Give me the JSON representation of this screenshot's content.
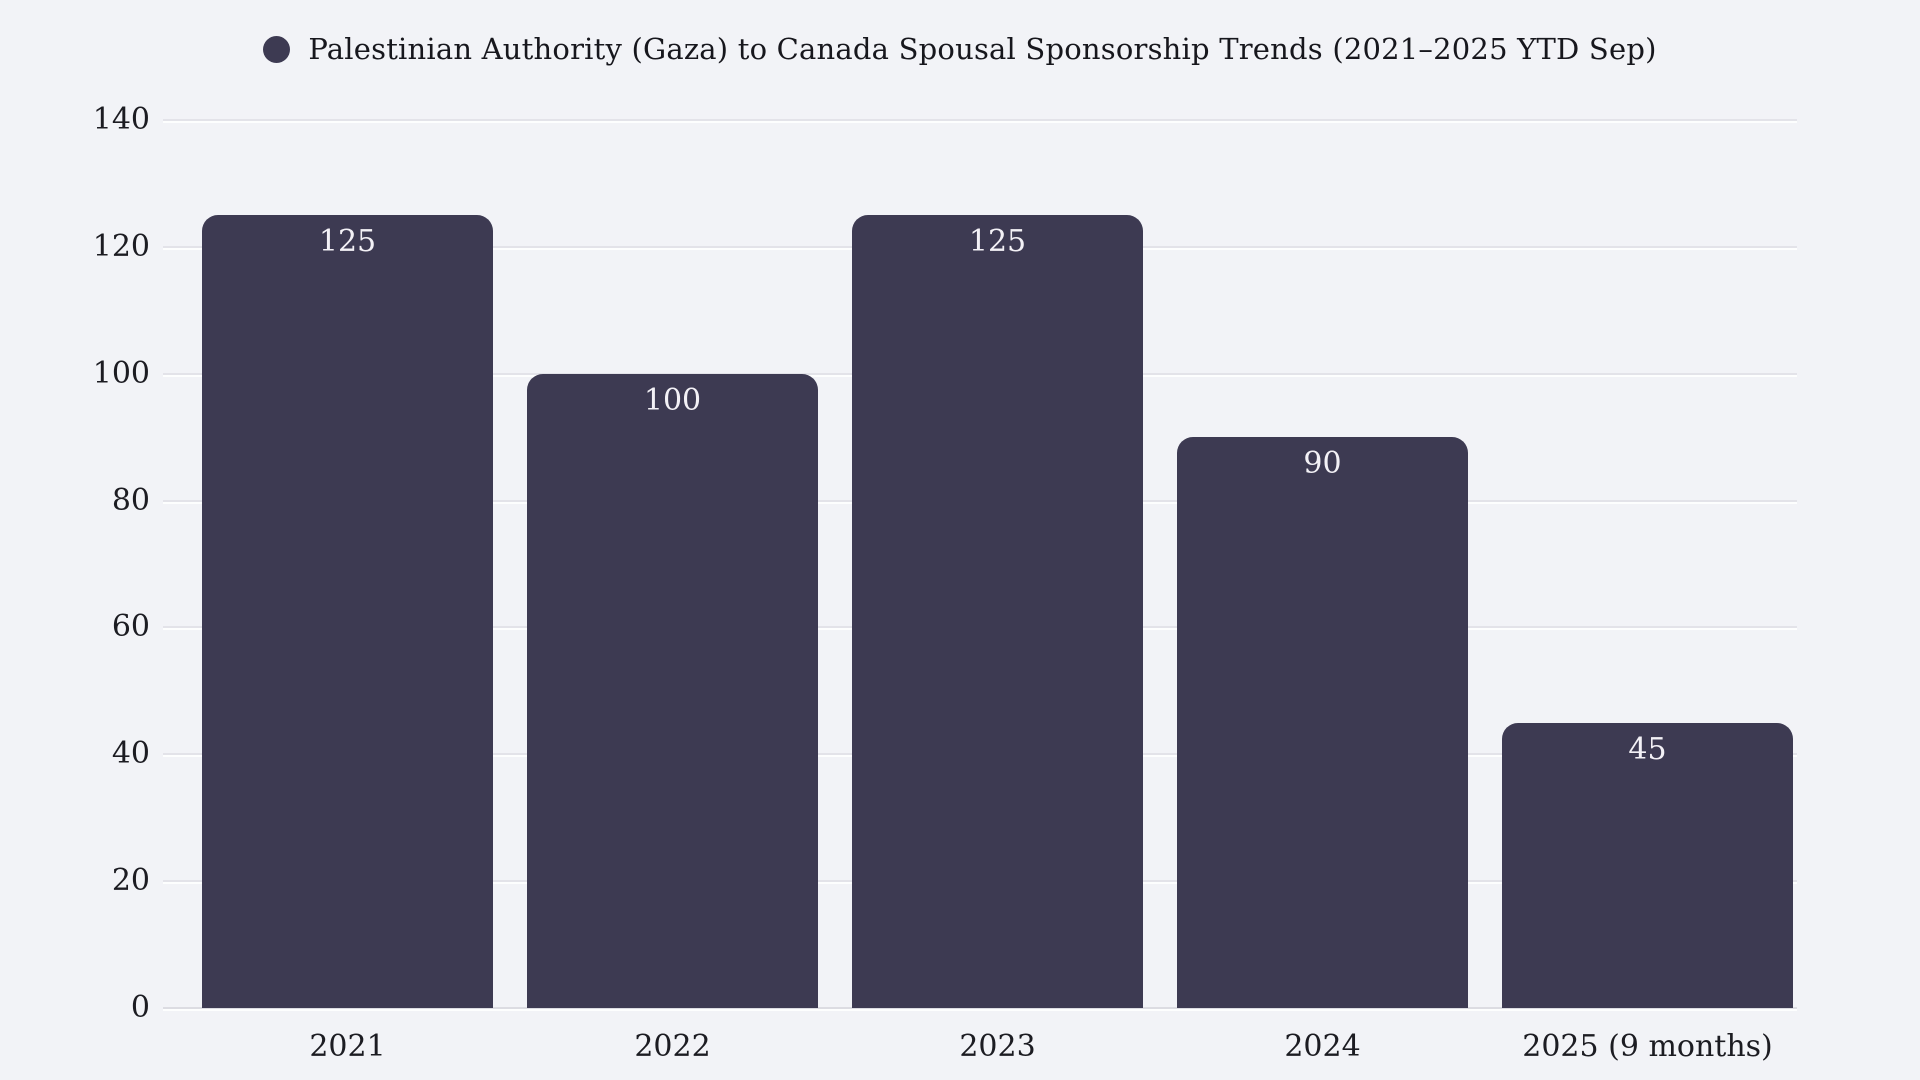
{
  "page": {
    "background_color": "#f2f3f7"
  },
  "legend": {
    "label": "Palestinian Authority (Gaza) to Canada Spousal Sponsorship Trends (2021–2025 YTD Sep)",
    "marker_color": "#3d3a52",
    "position": "top-center"
  },
  "chart_data": {
    "type": "bar",
    "title": "Palestinian Authority (Gaza) to Canada Spousal Sponsorship Trends (2021–2025 YTD Sep)",
    "categories": [
      "2021",
      "2022",
      "2023",
      "2024",
      "2025 (9 months)"
    ],
    "values": [
      125,
      100,
      125,
      90,
      45
    ],
    "value_labels": [
      "125",
      "100",
      "125",
      "90",
      "45"
    ],
    "xlabel": "",
    "ylabel": "",
    "ylim": [
      0,
      140
    ],
    "yticks": [
      0,
      20,
      40,
      60,
      80,
      100,
      120,
      140
    ],
    "grid": true,
    "legend_position": "top",
    "bar_color": "#3d3a52",
    "value_label_color": "#f3f1f6",
    "tick_label_color": "#1c1c22",
    "gridline_color": "#e3e3e9",
    "background_color": "#f2f3f7"
  }
}
